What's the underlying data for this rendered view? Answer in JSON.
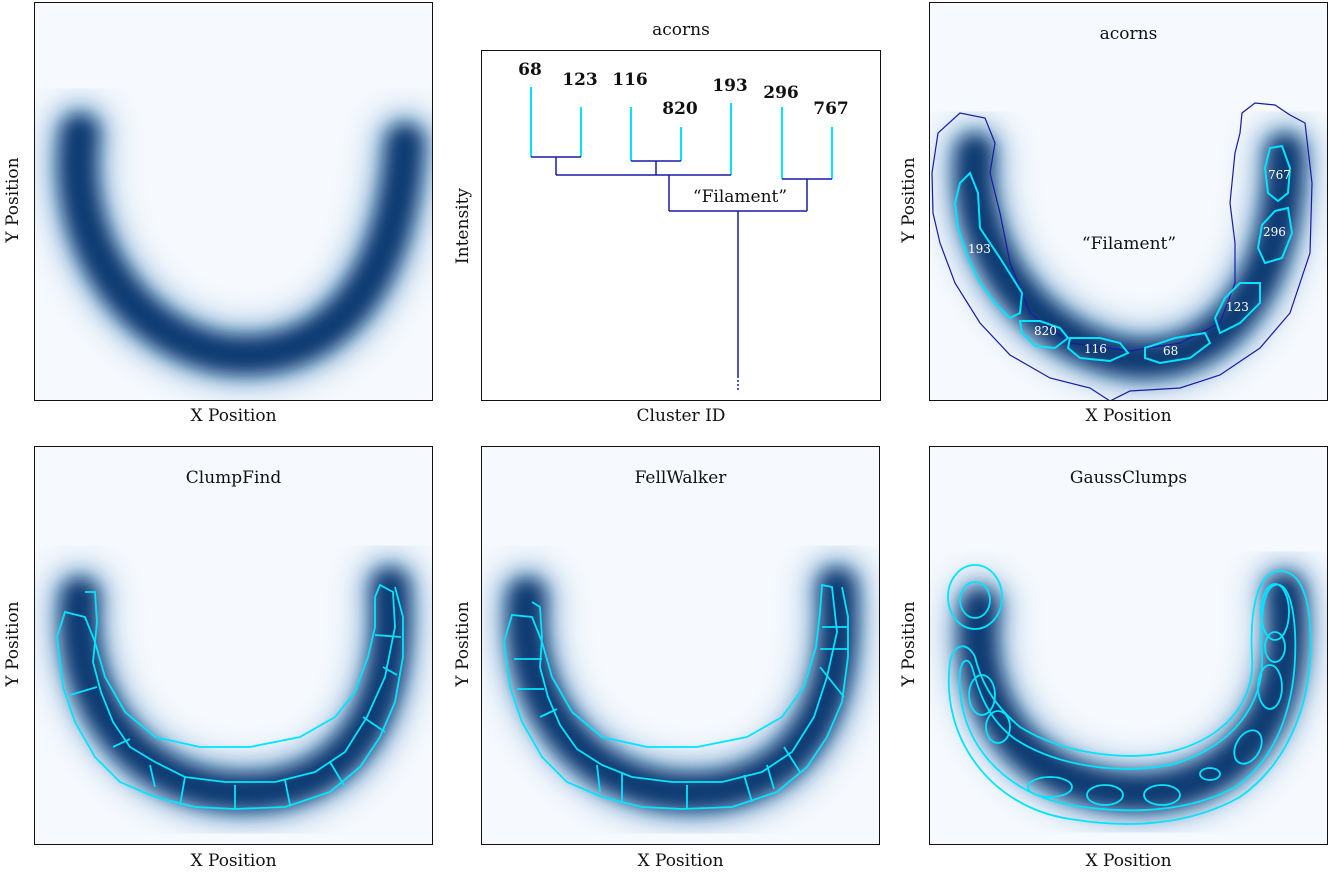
{
  "colors": {
    "background": "#f6f9fd",
    "ring_dark": "#0a3b72",
    "cyan": "#00e5ff",
    "navy": "#1a1aa8"
  },
  "common": {
    "x_label": "X Position",
    "y_label": "Y Position"
  },
  "dendrogram": {
    "title": "acorns",
    "x_label": "Cluster ID",
    "y_label": "Intensity",
    "leaves": [
      "68",
      "123",
      "116",
      "820",
      "193",
      "296",
      "767"
    ],
    "filament_label": "“Filament”"
  },
  "acorns_map": {
    "title": "acorns",
    "filament_label": "“Filament”",
    "clump_labels": [
      "193",
      "767",
      "296",
      "123",
      "820",
      "116",
      "68"
    ]
  },
  "clumpfind": {
    "title": "ClumpFind"
  },
  "fellwalker": {
    "title": "FellWalker"
  },
  "gaussclumps": {
    "title": "GaussClumps"
  }
}
